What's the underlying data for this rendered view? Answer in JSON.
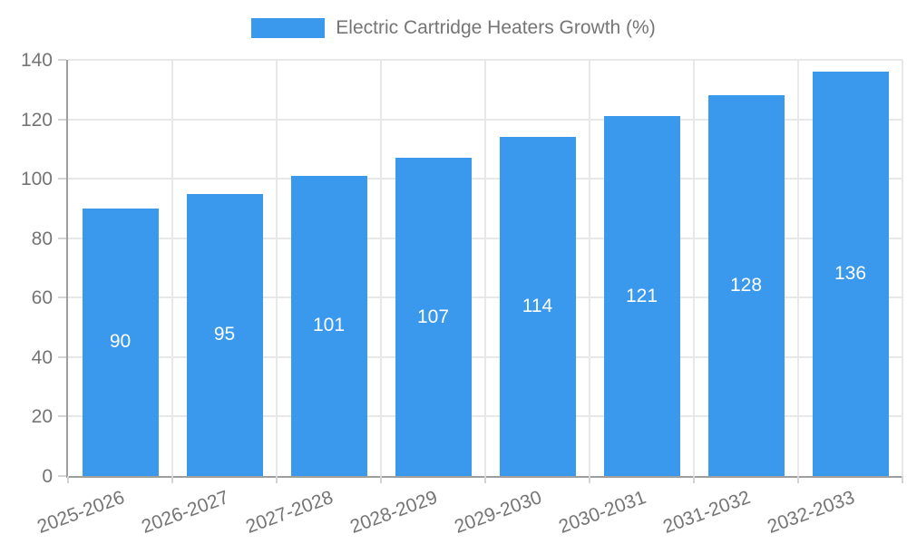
{
  "chart_data": {
    "type": "bar",
    "title": "Electric Cartridge Heaters Growth (%)",
    "legend": {
      "entries": [
        "Electric Cartridge Heaters Growth (%)"
      ],
      "position": "top-center"
    },
    "categories": [
      "2025-2026",
      "2026-2027",
      "2027-2028",
      "2028-2029",
      "2029-2030",
      "2030-2031",
      "2031-2032",
      "2032-2033"
    ],
    "values": [
      90,
      95,
      101,
      107,
      114,
      121,
      128,
      136
    ],
    "xlabel": "",
    "ylabel": "",
    "ylim": [
      0,
      140
    ],
    "yticks": [
      0,
      20,
      40,
      60,
      80,
      100,
      120,
      140
    ],
    "grid": true,
    "value_labels_position": "inside-center",
    "x_label_rotation_deg": -20,
    "colors": {
      "bar": "#3A99EC",
      "axis_text": "#757575",
      "value_label_text": "#FFFFFF",
      "gridline": "#E8E8E8",
      "axis_line": "#9E9E9E",
      "tick": "#D4D4D4",
      "background": "#FFFFFF"
    }
  }
}
